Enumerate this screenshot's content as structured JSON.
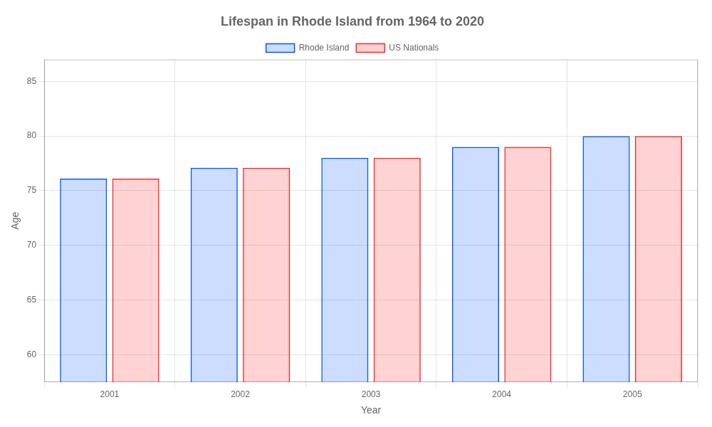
{
  "chart_data": {
    "type": "bar",
    "title": "Lifespan in Rhode Island from 1964 to 2020",
    "xlabel": "Year",
    "ylabel": "Age",
    "categories": [
      "2001",
      "2002",
      "2003",
      "2004",
      "2005"
    ],
    "series": [
      {
        "name": "Rhode Island",
        "color": "#0055ff",
        "values": [
          76.1,
          77.1,
          78.0,
          79.0,
          80.0
        ]
      },
      {
        "name": "US Nationals",
        "color": "#ff2222",
        "values": [
          76.1,
          77.1,
          78.0,
          79.0,
          80.0
        ]
      }
    ],
    "ylim": [
      57.5,
      87
    ],
    "yticks": [
      60,
      65,
      70,
      75,
      80,
      85
    ],
    "grid": true,
    "legend": "top"
  }
}
